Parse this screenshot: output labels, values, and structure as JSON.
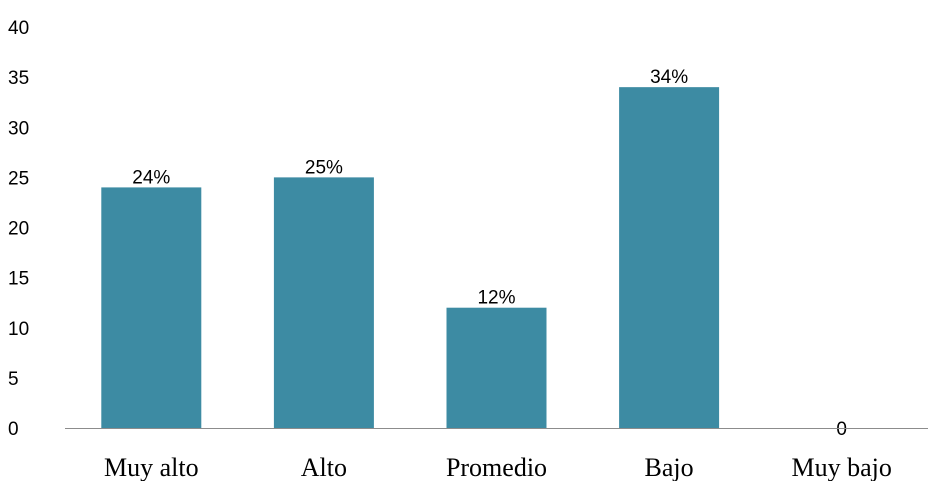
{
  "chart_data": {
    "type": "bar",
    "categories": [
      "Muy alto",
      "Alto",
      "Promedio",
      "Bajo",
      "Muy bajo"
    ],
    "values": [
      24,
      25,
      12,
      34,
      0
    ],
    "data_labels": [
      "24%",
      "25%",
      "12%",
      "34%",
      "0"
    ],
    "title": "",
    "xlabel": "",
    "ylabel": "",
    "ylim": [
      0,
      40
    ],
    "yticks": [
      "0",
      "5",
      "10",
      "15",
      "20",
      "25",
      "30",
      "35",
      "40"
    ],
    "grid": false,
    "legend": "none",
    "bar_color": "#3d8ba3",
    "axis_color": "#8c8c8c"
  }
}
